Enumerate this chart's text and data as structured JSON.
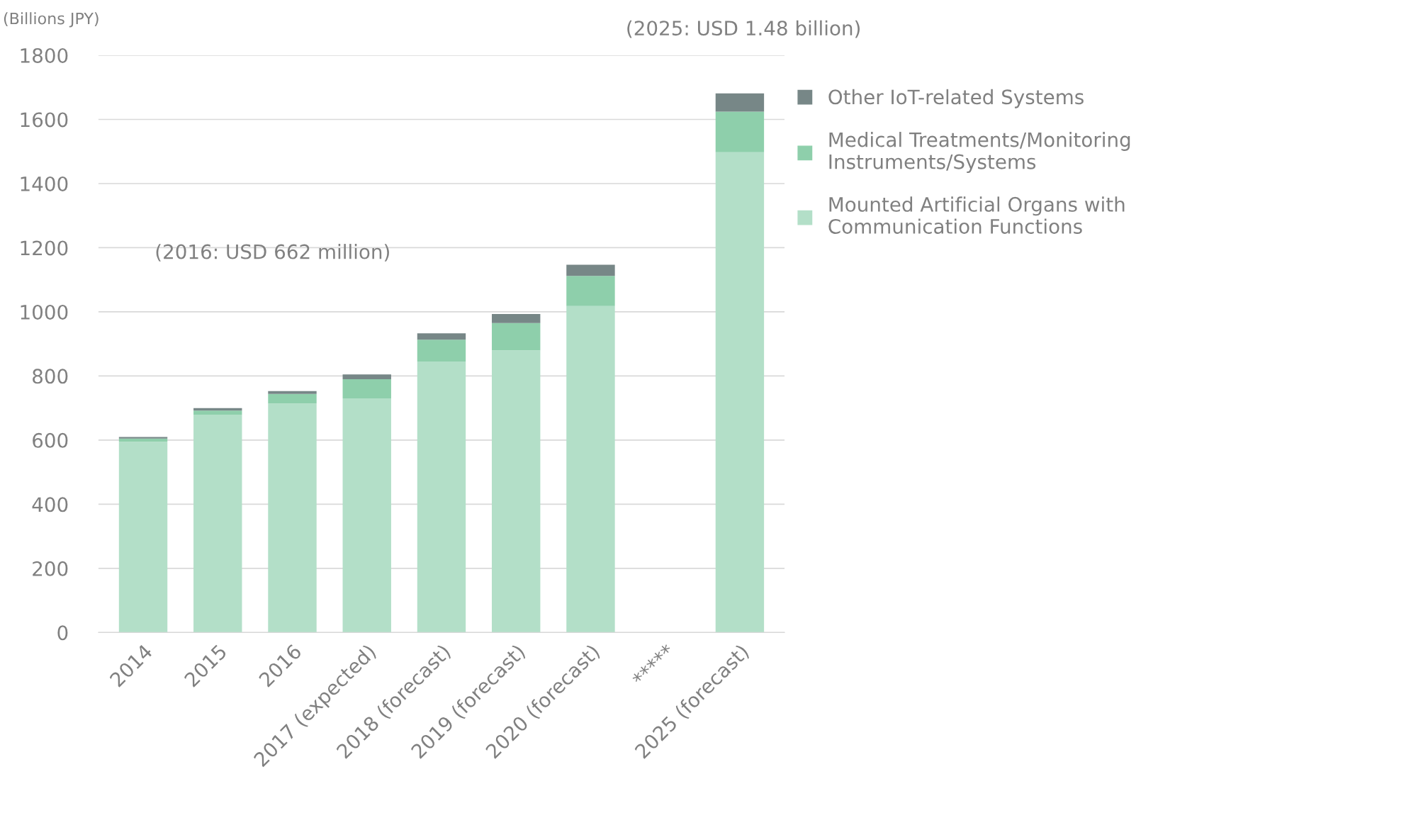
{
  "chart_data": {
    "type": "bar",
    "stacked": true,
    "ylabel": "(Billions JPY)",
    "categories": [
      "2014",
      "2015",
      "2016",
      "2017 (expected)",
      "2018 (forecast)",
      "2019 (forecast)",
      "2020 (forecast)",
      "*****",
      "2025 (forecast)"
    ],
    "series": [
      {
        "name": "Mounted Artificial Organs with Communication Functions",
        "color": "#b3dfc8",
        "values": [
          595,
          678,
          714,
          730,
          845,
          880,
          1018,
          null,
          1498
        ]
      },
      {
        "name": "Medical Treatments/Monitoring Instruments/Systems",
        "color": "#8ecfab",
        "values": [
          10,
          14,
          30,
          60,
          68,
          85,
          94,
          null,
          126
        ]
      },
      {
        "name": "Other IoT-related Systems",
        "color": "#778787",
        "values": [
          5,
          8,
          9,
          15,
          20,
          28,
          35,
          null,
          57
        ]
      }
    ],
    "ylim": [
      0,
      1800
    ],
    "yticks": [
      0,
      200,
      400,
      600,
      800,
      1000,
      1200,
      1400,
      1600,
      1800
    ],
    "grid": "y",
    "legend": "right",
    "annotations": [
      "(2016: USD 662 million)",
      "(2025: USD 1.48 billion)"
    ]
  }
}
